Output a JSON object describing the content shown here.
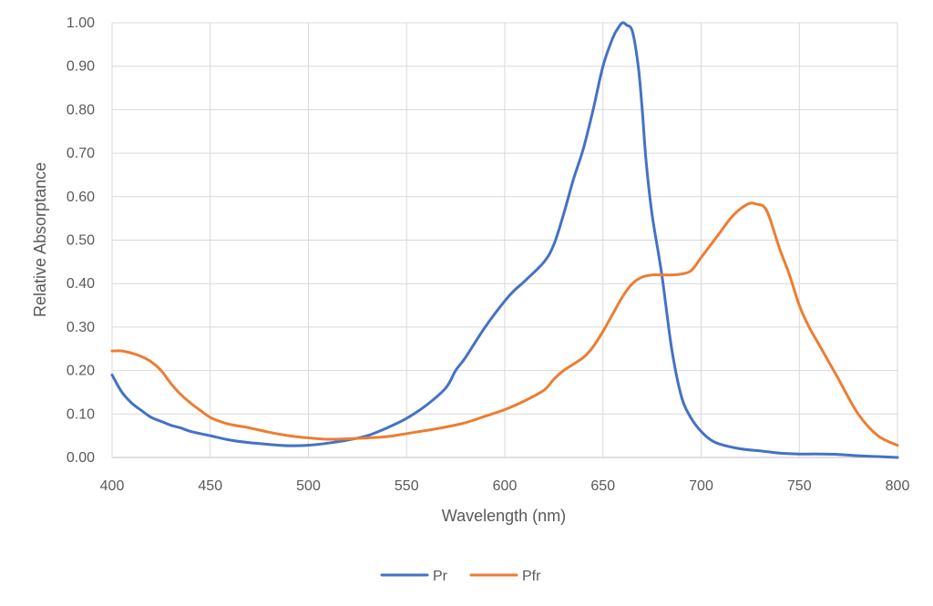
{
  "chart_data": {
    "type": "line",
    "xlabel": "Wavelength (nm)",
    "ylabel": "Relative Absorptance",
    "xlim": [
      400,
      800
    ],
    "ylim": [
      0,
      1.0
    ],
    "x_ticks": [
      "400",
      "450",
      "500",
      "550",
      "600",
      "650",
      "700",
      "750",
      "800"
    ],
    "y_ticks": [
      "0.00",
      "0.10",
      "0.20",
      "0.30",
      "0.40",
      "0.50",
      "0.60",
      "0.70",
      "0.80",
      "0.90",
      "1.00"
    ],
    "grid": true,
    "legend_position": "bottom",
    "series": [
      {
        "name": "Pr",
        "color": "#4472C4",
        "x": [
          400,
          405,
          410,
          415,
          420,
          425,
          430,
          435,
          440,
          450,
          460,
          470,
          480,
          490,
          500,
          510,
          520,
          530,
          540,
          550,
          560,
          570,
          575,
          580,
          590,
          600,
          605,
          610,
          620,
          625,
          630,
          635,
          640,
          645,
          650,
          655,
          658,
          660,
          662,
          665,
          668,
          670,
          672,
          675,
          680,
          685,
          690,
          695,
          700,
          705,
          710,
          720,
          730,
          740,
          750,
          760,
          770,
          780,
          790,
          800
        ],
        "y": [
          0.19,
          0.15,
          0.125,
          0.108,
          0.092,
          0.083,
          0.074,
          0.068,
          0.06,
          0.05,
          0.04,
          0.034,
          0.03,
          0.027,
          0.028,
          0.033,
          0.04,
          0.05,
          0.068,
          0.09,
          0.12,
          0.16,
          0.2,
          0.23,
          0.3,
          0.36,
          0.385,
          0.405,
          0.45,
          0.49,
          0.56,
          0.64,
          0.71,
          0.8,
          0.9,
          0.965,
          0.99,
          1.0,
          0.995,
          0.98,
          0.9,
          0.8,
          0.68,
          0.56,
          0.42,
          0.25,
          0.14,
          0.09,
          0.06,
          0.04,
          0.03,
          0.02,
          0.015,
          0.01,
          0.008,
          0.008,
          0.007,
          0.004,
          0.002,
          0.0
        ]
      },
      {
        "name": "Pfr",
        "color": "#ED7D31",
        "x": [
          400,
          405,
          410,
          415,
          420,
          425,
          430,
          435,
          440,
          445,
          450,
          455,
          460,
          470,
          480,
          490,
          500,
          510,
          520,
          530,
          540,
          550,
          560,
          570,
          580,
          590,
          600,
          610,
          620,
          625,
          630,
          640,
          645,
          650,
          655,
          660,
          665,
          670,
          675,
          680,
          685,
          690,
          695,
          700,
          705,
          710,
          715,
          720,
          725,
          728,
          732,
          735,
          740,
          745,
          750,
          755,
          760,
          770,
          780,
          790,
          800
        ],
        "y": [
          0.245,
          0.245,
          0.24,
          0.232,
          0.22,
          0.2,
          0.17,
          0.145,
          0.125,
          0.108,
          0.092,
          0.083,
          0.076,
          0.068,
          0.058,
          0.05,
          0.045,
          0.042,
          0.043,
          0.045,
          0.048,
          0.055,
          0.062,
          0.07,
          0.08,
          0.095,
          0.11,
          0.13,
          0.155,
          0.18,
          0.2,
          0.23,
          0.255,
          0.29,
          0.33,
          0.37,
          0.4,
          0.415,
          0.42,
          0.42,
          0.42,
          0.422,
          0.43,
          0.46,
          0.49,
          0.52,
          0.55,
          0.572,
          0.585,
          0.583,
          0.577,
          0.55,
          0.48,
          0.42,
          0.35,
          0.3,
          0.26,
          0.18,
          0.1,
          0.05,
          0.028
        ]
      }
    ]
  }
}
